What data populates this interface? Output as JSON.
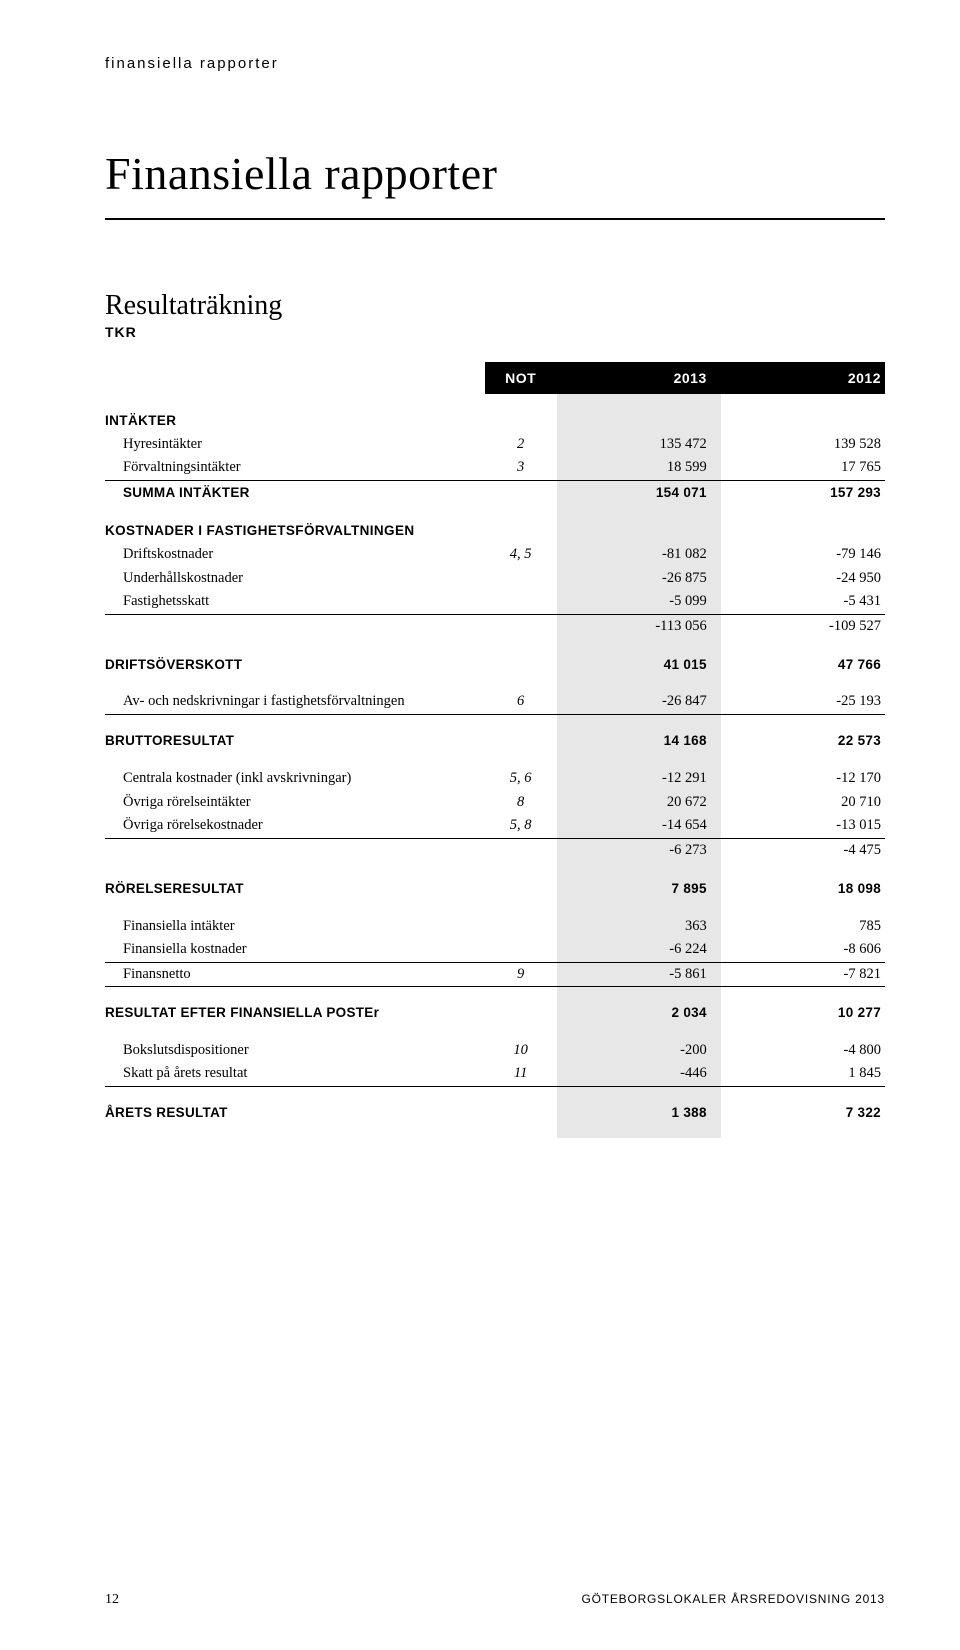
{
  "breadcrumb": "finansiella rapporter",
  "page_title": "Finansiella rapporter",
  "subtitle": "Resultaträkning",
  "tkr_label": "TKR",
  "columns": {
    "not": "NOT",
    "c2013": "2013",
    "c2012": "2012"
  },
  "section_intakter": "INTÄKTER",
  "rows_intakter": [
    {
      "label": "Hyresintäkter",
      "not": "2",
      "a": "135 472",
      "b": "139 528"
    },
    {
      "label": "Förvaltningsintäkter",
      "not": "3",
      "a": "18 599",
      "b": "17 765"
    }
  ],
  "summa_intakter": {
    "label": "SUMMA INTÄKTER",
    "a": "154 071",
    "b": "157 293"
  },
  "section_kostnader": "KOSTNADER I FASTIGHETSFÖRVALTNINGEN",
  "rows_kostnader": [
    {
      "label": "Driftskostnader",
      "not": "4, 5",
      "a": "-81 082",
      "b": "-79 146"
    },
    {
      "label": "Underhållskostnader",
      "not": "",
      "a": "-26 875",
      "b": "-24 950"
    },
    {
      "label": "Fastighetsskatt",
      "not": "",
      "a": "-5 099",
      "b": "-5 431"
    }
  ],
  "kostnader_sum": {
    "a": "-113 056",
    "b": "-109 527"
  },
  "driftsoverskott": {
    "label": "DRIFTSÖVERSKOTT",
    "a": "41 015",
    "b": "47 766"
  },
  "avskrivning": {
    "label": "Av- och nedskrivningar i fastighetsförvaltningen",
    "not": "6",
    "a": "-26 847",
    "b": "-25 193"
  },
  "bruttoresultat": {
    "label": "BRUTTORESULTAT",
    "a": "14 168",
    "b": "22 573"
  },
  "rows_centrala": [
    {
      "label": "Centrala kostnader (inkl avskrivningar)",
      "not": "5, 6",
      "a": "-12 291",
      "b": "-12 170"
    },
    {
      "label": "Övriga rörelseintäkter",
      "not": "8",
      "a": "20 672",
      "b": "20 710"
    },
    {
      "label": "Övriga rörelsekostnader",
      "not": "5, 8",
      "a": "-14 654",
      "b": "-13 015"
    }
  ],
  "centrala_sum": {
    "a": "-6 273",
    "b": "-4 475"
  },
  "rorelseresultat": {
    "label": "RÖRELSERESULTAT",
    "a": "7 895",
    "b": "18 098"
  },
  "rows_finans": [
    {
      "label": "Finansiella intäkter",
      "not": "",
      "a": "363",
      "b": "785"
    },
    {
      "label": "Finansiella kostnader",
      "not": "",
      "a": "-6 224",
      "b": "-8 606"
    },
    {
      "label": "Finansnetto",
      "not": "9",
      "a": "-5 861",
      "b": "-7 821"
    }
  ],
  "resultat_efter": {
    "label": "RESULTAT EFTER FINANSIELLA POSTEr",
    "a": "2 034",
    "b": "10 277"
  },
  "rows_bokslut": [
    {
      "label": "Bokslutsdispositioner",
      "not": "10",
      "a": "-200",
      "b": "-4 800"
    },
    {
      "label": "Skatt på årets resultat",
      "not": "11",
      "a": "-446",
      "b": "1 845"
    }
  ],
  "arets_resultat": {
    "label": "ÅRETS RESULTAT",
    "a": "1 388",
    "b": "7 322"
  },
  "footer": {
    "page": "12",
    "source": "GÖTEBORGSLOKALER ÅRSREDOVISNING 2013"
  },
  "colors": {
    "background": "#ffffff",
    "text": "#000000",
    "header_bg": "#000000",
    "header_fg": "#ffffff",
    "shade": "#e7e7e7",
    "rule": "#000000"
  },
  "typography": {
    "breadcrumb_fontsize": 15,
    "title_fontsize": 46,
    "subtitle_fontsize": 28,
    "body_fontsize": 14.5,
    "sans_bold_fontsize": 13.5
  }
}
